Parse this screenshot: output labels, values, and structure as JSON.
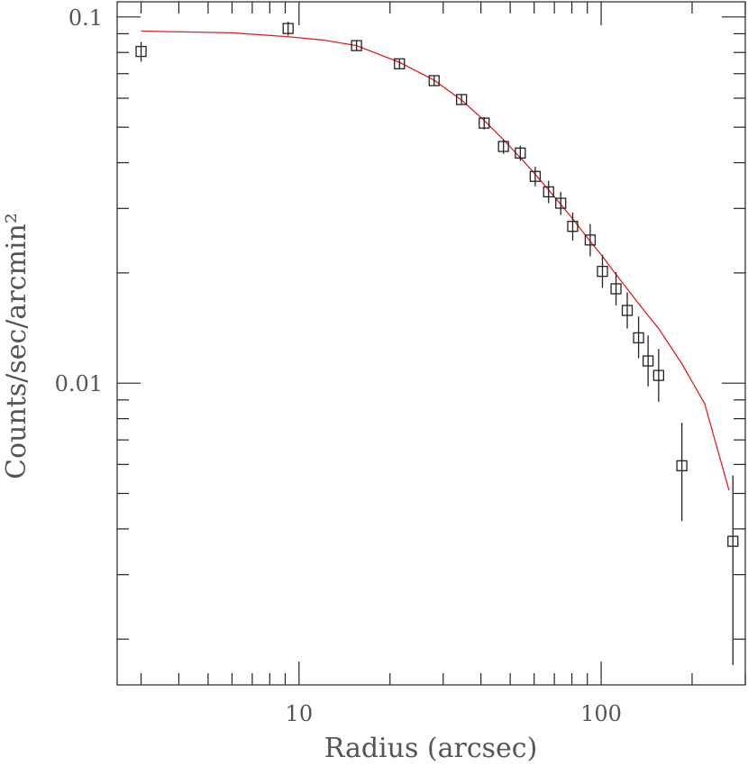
{
  "chart_data": {
    "type": "scatter",
    "xlabel": "Radius (arcsec)",
    "ylabel": "Counts/sec/arcmin²",
    "x_scale": "log",
    "y_scale": "log",
    "xlim": [
      2.5,
      300
    ],
    "ylim": [
      0.0015,
      0.11
    ],
    "x_ticks": [
      {
        "value": 10,
        "label": "10"
      },
      {
        "value": 100,
        "label": "100"
      }
    ],
    "y_ticks": [
      {
        "value": 0.1,
        "label": "0.1"
      },
      {
        "value": 0.01,
        "label": "0.01"
      }
    ],
    "grid": false,
    "points": [
      {
        "x": 3.0,
        "y": 0.0805,
        "ylo": 0.0755,
        "yhi": 0.0855
      },
      {
        "x": 9.2,
        "y": 0.093,
        "ylo": 0.089,
        "yhi": 0.097
      },
      {
        "x": 15.5,
        "y": 0.0835,
        "ylo": 0.081,
        "yhi": 0.086
      },
      {
        "x": 21.5,
        "y": 0.0745,
        "ylo": 0.0725,
        "yhi": 0.0765
      },
      {
        "x": 28.0,
        "y": 0.067,
        "ylo": 0.065,
        "yhi": 0.069
      },
      {
        "x": 34.5,
        "y": 0.0595,
        "ylo": 0.0575,
        "yhi": 0.0615
      },
      {
        "x": 41.0,
        "y": 0.0513,
        "ylo": 0.0493,
        "yhi": 0.0533
      },
      {
        "x": 47.5,
        "y": 0.0443,
        "ylo": 0.0423,
        "yhi": 0.0463
      },
      {
        "x": 54.0,
        "y": 0.0425,
        "ylo": 0.0405,
        "yhi": 0.0445
      },
      {
        "x": 60.5,
        "y": 0.0367,
        "ylo": 0.0345,
        "yhi": 0.039
      },
      {
        "x": 67.0,
        "y": 0.0333,
        "ylo": 0.031,
        "yhi": 0.0357
      },
      {
        "x": 73.5,
        "y": 0.031,
        "ylo": 0.0288,
        "yhi": 0.0333
      },
      {
        "x": 80.5,
        "y": 0.0268,
        "ylo": 0.0245,
        "yhi": 0.0292
      },
      {
        "x": 92.0,
        "y": 0.0246,
        "ylo": 0.0222,
        "yhi": 0.0272
      },
      {
        "x": 101.0,
        "y": 0.0202,
        "ylo": 0.0182,
        "yhi": 0.0224
      },
      {
        "x": 112.0,
        "y": 0.0181,
        "ylo": 0.0163,
        "yhi": 0.0201
      },
      {
        "x": 122.0,
        "y": 0.0158,
        "ylo": 0.0141,
        "yhi": 0.0177
      },
      {
        "x": 133.0,
        "y": 0.0133,
        "ylo": 0.0117,
        "yhi": 0.0152
      },
      {
        "x": 143.0,
        "y": 0.0115,
        "ylo": 0.0098,
        "yhi": 0.0135
      },
      {
        "x": 155.0,
        "y": 0.0105,
        "ylo": 0.0089,
        "yhi": 0.0124
      },
      {
        "x": 185.0,
        "y": 0.00595,
        "ylo": 0.0042,
        "yhi": 0.0078
      },
      {
        "x": 273.0,
        "y": 0.0037,
        "ylo": 0.0017,
        "yhi": 0.0056
      }
    ],
    "fit_line": {
      "color": "#e02020",
      "x": [
        3.0,
        6.0,
        9.2,
        12.0,
        15.5,
        21.5,
        28.0,
        34.5,
        41.0,
        47.5,
        54.0,
        60.5,
        67.0,
        73.5,
        80.5,
        92.0,
        101.0,
        112.0,
        122.0,
        133.0,
        143.0,
        155.0,
        185.0,
        220.0,
        265.0
      ],
      "y": [
        0.0915,
        0.0905,
        0.0883,
        0.0865,
        0.0835,
        0.0752,
        0.0672,
        0.0593,
        0.0522,
        0.0462,
        0.0413,
        0.0372,
        0.0337,
        0.0308,
        0.0281,
        0.0244,
        0.0222,
        0.0198,
        0.0181,
        0.0165,
        0.0153,
        0.0141,
        0.0113,
        0.0088,
        0.0051
      ]
    }
  }
}
